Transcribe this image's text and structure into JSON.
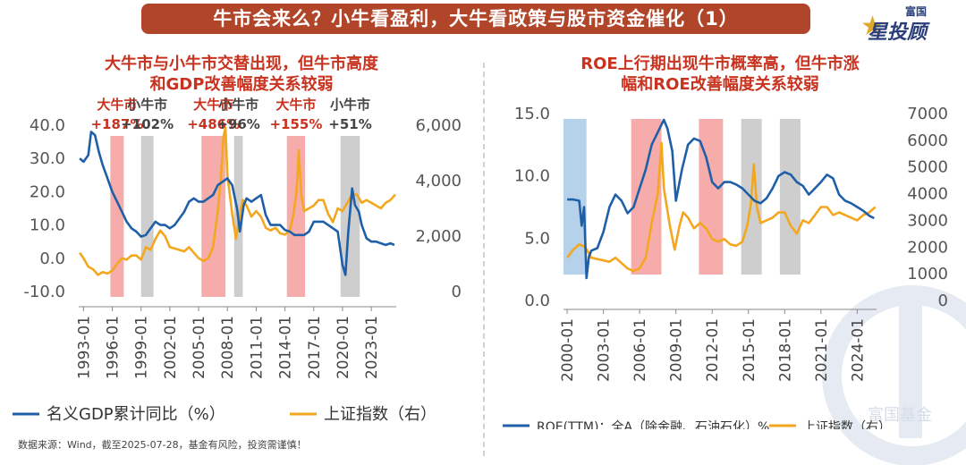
{
  "banner": "牛市会来么？小牛看盈利，大牛看政策与股市资金催化（1）",
  "brand": {
    "top": "富国",
    "main": "星投顾"
  },
  "source": "数据来源：Wind，截至2025-07-28，基金有风险，投资需谨慎！",
  "watermark": "富国基金",
  "colors": {
    "blue": "#1f5fa8",
    "orange": "#f3a71f",
    "red": "#c8321e",
    "gray": "#c9c9c9",
    "pink": "#f6a3a3",
    "lightblue": "#aecde8"
  },
  "chart_data": [
    {
      "type": "line",
      "title_lines": [
        "大牛市与小牛市交替出现，但牛市高度",
        "和GDP改善幅度关系较弱"
      ],
      "x_ticks": [
        "1993-01",
        "1996-01",
        "1999-01",
        "2002-01",
        "2005-01",
        "2008-01",
        "2011-01",
        "2014-01",
        "2017-01",
        "2020-01",
        "2023-01"
      ],
      "y_left_ticks": [
        "40.0",
        "30.0",
        "20.0",
        "10.0",
        "0.0",
        "-10.0"
      ],
      "y_left_range": [
        -10,
        40
      ],
      "y_right_ticks": [
        "6,000",
        "4,000",
        "2,000",
        "0"
      ],
      "y_right_range": [
        0,
        6000
      ],
      "x_range": [
        1992.5,
        2025.6
      ],
      "regions": [
        {
          "start": 1995.8,
          "end": 1997.2,
          "kind": "big",
          "label": "大牛市",
          "gain": "+187%"
        },
        {
          "start": 1999.0,
          "end": 2000.3,
          "kind": "small",
          "label": "小牛市",
          "gain": "+102%"
        },
        {
          "start": 2005.3,
          "end": 2007.8,
          "kind": "big",
          "label": "大牛市",
          "gain": "+486%"
        },
        {
          "start": 2008.7,
          "end": 2009.6,
          "kind": "small",
          "label": "小牛市",
          "gain": "+96%"
        },
        {
          "start": 2014.2,
          "end": 2016.1,
          "kind": "big",
          "label": "大牛市",
          "gain": "+155%"
        },
        {
          "start": 2019.8,
          "end": 2021.8,
          "kind": "small",
          "label": "小牛市",
          "gain": "+51%"
        }
      ],
      "series": [
        {
          "name": "名义GDP累计同比（%）",
          "axis": "left",
          "x": [
            1992.6,
            1993.0,
            1993.5,
            1993.8,
            1994.2,
            1994.6,
            1995.0,
            1995.5,
            1996.0,
            1996.5,
            1997.0,
            1997.5,
            1998.0,
            1998.5,
            1999.0,
            1999.5,
            2000.0,
            2000.5,
            2001.0,
            2001.5,
            2002.0,
            2002.5,
            2003.0,
            2003.5,
            2004.0,
            2004.5,
            2005.0,
            2005.5,
            2006.0,
            2006.5,
            2007.0,
            2007.5,
            2008.0,
            2008.5,
            2009.0,
            2009.3,
            2009.7,
            2010.0,
            2010.5,
            2011.0,
            2011.5,
            2012.0,
            2012.5,
            2013.0,
            2013.5,
            2014.0,
            2014.5,
            2015.0,
            2015.5,
            2016.0,
            2016.5,
            2017.0,
            2017.5,
            2018.0,
            2018.5,
            2019.0,
            2019.5,
            2020.0,
            2020.3,
            2020.6,
            2021.0,
            2021.3,
            2021.7,
            2022.0,
            2022.5,
            2023.0,
            2023.5,
            2024.0,
            2024.5,
            2025.0,
            2025.4
          ],
          "y": [
            30,
            29,
            31,
            38,
            37,
            32,
            28,
            24,
            20,
            17,
            14,
            11,
            9,
            8,
            6.5,
            7,
            9,
            11,
            10,
            10,
            9,
            10,
            12,
            14,
            17,
            18,
            17,
            17,
            18,
            19,
            22,
            23,
            24,
            22,
            15,
            8,
            16,
            18,
            17,
            18,
            19,
            13,
            10,
            10,
            10,
            8.5,
            8,
            7,
            7,
            7,
            8,
            11,
            11,
            11,
            10,
            9,
            8,
            -2,
            -5,
            8,
            21,
            16,
            14,
            10,
            6,
            5,
            5,
            4.5,
            4,
            4.5,
            4
          ]
        },
        {
          "name": "上证指数（右）",
          "axis": "right",
          "x": [
            1992.6,
            1993.0,
            1993.5,
            1994.0,
            1994.5,
            1995.0,
            1995.5,
            1996.0,
            1996.5,
            1997.0,
            1997.5,
            1998.0,
            1998.5,
            1999.0,
            1999.5,
            2000.0,
            2000.5,
            2001.0,
            2001.5,
            2002.0,
            2002.5,
            2003.0,
            2003.5,
            2004.0,
            2004.5,
            2005.0,
            2005.5,
            2006.0,
            2006.5,
            2007.0,
            2007.3,
            2007.6,
            2007.8,
            2008.0,
            2008.5,
            2008.9,
            2009.3,
            2009.6,
            2010.0,
            2010.5,
            2011.0,
            2011.5,
            2012.0,
            2012.5,
            2013.0,
            2013.5,
            2014.0,
            2014.5,
            2014.9,
            2015.2,
            2015.45,
            2015.7,
            2016.0,
            2016.5,
            2017.0,
            2017.5,
            2018.0,
            2018.5,
            2019.0,
            2019.5,
            2020.0,
            2020.5,
            2021.0,
            2021.5,
            2022.0,
            2022.5,
            2023.0,
            2023.5,
            2024.0,
            2024.5,
            2025.0,
            2025.5
          ],
          "y": [
            1400,
            1200,
            900,
            800,
            600,
            700,
            650,
            750,
            1000,
            1200,
            1150,
            1300,
            1300,
            1150,
            1600,
            1500,
            1900,
            2200,
            2000,
            1600,
            1550,
            1500,
            1450,
            1600,
            1400,
            1200,
            1100,
            1200,
            1600,
            2900,
            4000,
            5600,
            5900,
            4200,
            2800,
            1900,
            2800,
            3300,
            3100,
            2700,
            2900,
            2700,
            2300,
            2200,
            2300,
            2100,
            2050,
            2200,
            2800,
            3600,
            5100,
            3500,
            2900,
            3000,
            3100,
            3300,
            3300,
            2800,
            2500,
            3000,
            2900,
            3200,
            3500,
            3500,
            3200,
            3300,
            3200,
            3100,
            3000,
            3200,
            3300,
            3500
          ]
        }
      ]
    },
    {
      "type": "line",
      "title_lines": [
        "ROE上行期出现牛市概率高，但牛市涨",
        "幅和ROE改善幅度关系较弱"
      ],
      "x_ticks": [
        "2000-01",
        "2003-01",
        "2006-01",
        "2009-01",
        "2012-01",
        "2015-01",
        "2018-01",
        "2021-01",
        "2024-01"
      ],
      "y_left_ticks": [
        "15.0",
        "10.0",
        "5.0",
        "0.0"
      ],
      "y_left_range": [
        0,
        15
      ],
      "y_right_ticks": [
        "7000",
        "6000",
        "5000",
        "4000",
        "3000",
        "2000",
        "1000",
        "0"
      ],
      "y_right_range": [
        0,
        7000
      ],
      "x_range": [
        1999.7,
        2025.6
      ],
      "regions": [
        {
          "start": 1999.7,
          "end": 2001.6,
          "kind": "blue"
        },
        {
          "start": 2005.3,
          "end": 2007.8,
          "kind": "big"
        },
        {
          "start": 2010.9,
          "end": 2012.9,
          "kind": "big"
        },
        {
          "start": 2014.4,
          "end": 2016.1,
          "kind": "small"
        },
        {
          "start": 2017.6,
          "end": 2019.3,
          "kind": "small"
        }
      ],
      "series": [
        {
          "name": "ROE(TTM)：全A（除金融、石油石化）%",
          "axis": "left",
          "x": [
            2000.0,
            2000.5,
            2001.0,
            2001.2,
            2001.4,
            2001.6,
            2001.8,
            2002.0,
            2002.5,
            2003.0,
            2003.5,
            2004.0,
            2004.5,
            2005.0,
            2005.5,
            2006.0,
            2006.5,
            2007.0,
            2007.5,
            2008.0,
            2008.3,
            2008.7,
            2009.0,
            2009.5,
            2010.0,
            2010.5,
            2011.0,
            2011.5,
            2012.0,
            2012.5,
            2013.0,
            2013.5,
            2014.0,
            2014.5,
            2015.0,
            2015.5,
            2016.0,
            2016.5,
            2017.0,
            2017.5,
            2018.0,
            2018.5,
            2019.0,
            2019.5,
            2020.0,
            2020.5,
            2021.0,
            2021.5,
            2022.0,
            2022.5,
            2023.0,
            2023.5,
            2024.0,
            2024.5,
            2025.0,
            2025.4
          ],
          "y": [
            8.1,
            8.1,
            8.0,
            6.0,
            7.5,
            1.8,
            3.5,
            4.0,
            4.2,
            5.5,
            7.5,
            8.5,
            8.0,
            7.0,
            7.5,
            9.0,
            10.5,
            12.5,
            13.5,
            14.5,
            13.8,
            12.0,
            8.0,
            10.5,
            12.5,
            13.0,
            12.8,
            11.5,
            9.5,
            9.0,
            9.5,
            9.5,
            9.3,
            9.0,
            8.5,
            8.0,
            7.8,
            8.2,
            9.0,
            10.0,
            10.3,
            10.1,
            9.5,
            9.2,
            8.5,
            9.0,
            9.5,
            10.1,
            9.8,
            8.5,
            8.0,
            7.8,
            7.5,
            7.2,
            6.8,
            6.6
          ]
        },
        {
          "name": "上证指数（右）",
          "axis": "right",
          "x": [
            2000.0,
            2000.5,
            2001.0,
            2001.5,
            2002.0,
            2002.5,
            2003.0,
            2003.5,
            2004.0,
            2004.5,
            2005.0,
            2005.5,
            2006.0,
            2006.5,
            2007.0,
            2007.5,
            2007.8,
            2008.0,
            2008.5,
            2008.9,
            2009.3,
            2009.6,
            2010.0,
            2010.5,
            2011.0,
            2011.5,
            2012.0,
            2012.5,
            2013.0,
            2013.5,
            2014.0,
            2014.5,
            2014.9,
            2015.2,
            2015.45,
            2015.7,
            2016.0,
            2016.5,
            2017.0,
            2017.5,
            2018.0,
            2018.5,
            2019.0,
            2019.5,
            2020.0,
            2020.5,
            2021.0,
            2021.5,
            2022.0,
            2022.5,
            2023.0,
            2023.5,
            2024.0,
            2024.5,
            2025.0,
            2025.5
          ],
          "y": [
            1600,
            1900,
            2100,
            2000,
            1600,
            1550,
            1500,
            1450,
            1600,
            1400,
            1200,
            1100,
            1200,
            1600,
            2900,
            4000,
            5900,
            4200,
            2800,
            1900,
            2800,
            3300,
            3100,
            2700,
            2900,
            2700,
            2300,
            2200,
            2300,
            2100,
            2050,
            2200,
            2800,
            3600,
            5100,
            3500,
            2900,
            3000,
            3100,
            3300,
            3300,
            2800,
            2500,
            3000,
            2900,
            3200,
            3500,
            3500,
            3200,
            3300,
            3200,
            3100,
            3000,
            3200,
            3300,
            3500
          ]
        }
      ]
    }
  ]
}
